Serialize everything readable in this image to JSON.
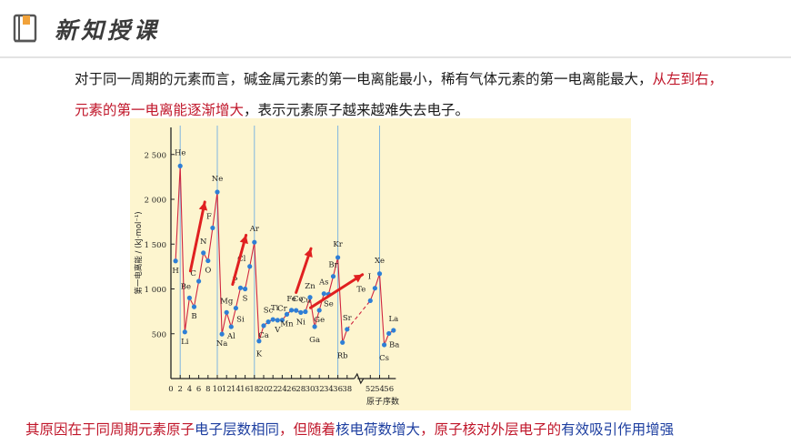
{
  "header": {
    "title": "新知授课"
  },
  "paragraph": {
    "part1": "对于同一周期的元素而言，碱金属元素的第一电离能最小，稀有气体元素的第一电离能最大，",
    "part2": "从左到右，元素的第一电离能逐渐增大",
    "part3": "，表示元素原子越来越难失去电子。"
  },
  "bottom": {
    "p1": "其原因在于同周期元素原子",
    "p2": "电子层数相同",
    "p3": "，但随着",
    "p4": "核电荷数增大",
    "p5": "，",
    "p6": "原子核对外层电子的",
    "p7": "有效吸引作用增强"
  },
  "colors": {
    "line": "#d0263f",
    "point": "#2e7fd6",
    "accent": "#c0162a",
    "arrow": "#e02020",
    "guide": "#7fb5e0",
    "bg": "#fdf5cf"
  },
  "chart_data": {
    "type": "line",
    "xlabel": "原子序数",
    "ylabel": "第一电离能 / (kJ·mol⁻¹)",
    "ylim": [
      0,
      2700
    ],
    "yticks": [
      500,
      1000,
      1500,
      2000,
      2500
    ],
    "ytick_labels": [
      "500",
      "1 000",
      "1 500",
      "2 000",
      "2 500"
    ],
    "xticks": [
      "0",
      "2",
      "4",
      "6",
      "8",
      "10",
      "12",
      "14",
      "16",
      "18",
      "20",
      "22",
      "24",
      "26",
      "28",
      "30",
      "32",
      "34",
      "36",
      "38",
      "52",
      "54",
      "56"
    ],
    "guides": [
      2,
      10,
      18,
      36,
      54
    ],
    "points": [
      {
        "z": 1,
        "el": "H",
        "v": 1312
      },
      {
        "z": 2,
        "el": "He",
        "v": 2372
      },
      {
        "z": 3,
        "el": "Li",
        "v": 520
      },
      {
        "z": 4,
        "el": "Be",
        "v": 900
      },
      {
        "z": 5,
        "el": "B",
        "v": 801
      },
      {
        "z": 6,
        "el": "C",
        "v": 1086
      },
      {
        "z": 7,
        "el": "N",
        "v": 1402
      },
      {
        "z": 8,
        "el": "O",
        "v": 1314
      },
      {
        "z": 9,
        "el": "F",
        "v": 1681
      },
      {
        "z": 10,
        "el": "Ne",
        "v": 2081
      },
      {
        "z": 11,
        "el": "Na",
        "v": 496
      },
      {
        "z": 12,
        "el": "Mg",
        "v": 738
      },
      {
        "z": 13,
        "el": "Al",
        "v": 578
      },
      {
        "z": 14,
        "el": "Si",
        "v": 786
      },
      {
        "z": 15,
        "el": "P",
        "v": 1012
      },
      {
        "z": 16,
        "el": "S",
        "v": 1000
      },
      {
        "z": 17,
        "el": "Cl",
        "v": 1251
      },
      {
        "z": 18,
        "el": "Ar",
        "v": 1521
      },
      {
        "z": 19,
        "el": "K",
        "v": 419
      },
      {
        "z": 20,
        "el": "Ca",
        "v": 590
      },
      {
        "z": 21,
        "el": "Sc",
        "v": 633
      },
      {
        "z": 22,
        "el": "Ti",
        "v": 659
      },
      {
        "z": 23,
        "el": "V",
        "v": 651
      },
      {
        "z": 24,
        "el": "Cr",
        "v": 653
      },
      {
        "z": 25,
        "el": "Mn",
        "v": 717
      },
      {
        "z": 26,
        "el": "Fe",
        "v": 763
      },
      {
        "z": 27,
        "el": "Co",
        "v": 760
      },
      {
        "z": 28,
        "el": "Ni",
        "v": 737
      },
      {
        "z": 29,
        "el": "Cu",
        "v": 746
      },
      {
        "z": 30,
        "el": "Zn",
        "v": 906
      },
      {
        "z": 31,
        "el": "Ga",
        "v": 579
      },
      {
        "z": 32,
        "el": "Ge",
        "v": 762
      },
      {
        "z": 33,
        "el": "As",
        "v": 947
      },
      {
        "z": 34,
        "el": "Se",
        "v": 941
      },
      {
        "z": 35,
        "el": "Br",
        "v": 1140
      },
      {
        "z": 36,
        "el": "Kr",
        "v": 1351
      },
      {
        "z": 37,
        "el": "Rb",
        "v": 403
      },
      {
        "z": 38,
        "el": "Sr",
        "v": 550
      },
      {
        "z": 52,
        "el": "Te",
        "v": 869
      },
      {
        "z": 53,
        "el": "I",
        "v": 1008
      },
      {
        "z": 54,
        "el": "Xe",
        "v": 1170
      },
      {
        "z": 55,
        "el": "Cs",
        "v": 376
      },
      {
        "z": 56,
        "el": "Ba",
        "v": 503
      },
      {
        "z": 57,
        "el": "La",
        "v": 538
      }
    ],
    "gap_between": [
      38,
      52
    ]
  }
}
